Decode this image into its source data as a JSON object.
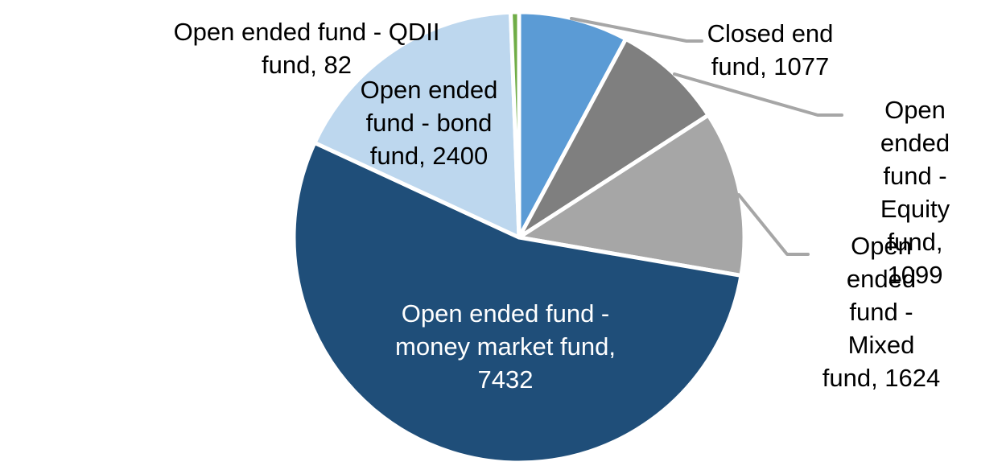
{
  "chart_data": {
    "type": "pie",
    "categories": [
      "Closed end fund",
      "Open ended fund - Equity fund",
      "Open ended fund - Mixed fund",
      "Open ended fund - money market fund",
      "Open ended fund - bond fund",
      "Open ended fund - QDII fund"
    ],
    "values": [
      1077,
      1099,
      1624,
      7432,
      2400,
      82
    ],
    "colors": [
      "#5b9bd5",
      "#7f7f7f",
      "#a6a6a6",
      "#1f4e79",
      "#bdd7ee",
      "#70ad47"
    ],
    "start_angle_deg": 0,
    "direction": "clockwise",
    "legend": "none",
    "background_color": "#ffffff",
    "slice_border_color": "#ffffff",
    "leader_line_color": "#a6a6a6",
    "data_labels": [
      {
        "category": "Closed end fund",
        "value": 1077,
        "text": "Closed end\nfund, 1077",
        "placement": "outside",
        "leader_line": true,
        "color": "#000000"
      },
      {
        "category": "Open ended fund - Equity fund",
        "value": 1099,
        "text": "Open ended\nfund - Equity\nfund, 1099",
        "placement": "outside",
        "leader_line": true,
        "color": "#000000"
      },
      {
        "category": "Open ended fund - Mixed fund",
        "value": 1624,
        "text": "Open ended\nfund - Mixed\nfund, 1624",
        "placement": "outside",
        "leader_line": true,
        "color": "#000000"
      },
      {
        "category": "Open ended fund - money market fund",
        "value": 7432,
        "text": "Open ended fund -\nmoney market fund,\n7432",
        "placement": "inside",
        "leader_line": false,
        "color": "#ffffff"
      },
      {
        "category": "Open ended fund - bond fund",
        "value": 2400,
        "text": "Open ended\nfund - bond\nfund, 2400",
        "placement": "inside",
        "leader_line": false,
        "color": "#000000"
      },
      {
        "category": "Open ended fund - QDII fund",
        "value": 82,
        "text": "Open ended fund - QDII\nfund, 82",
        "placement": "outside",
        "leader_line": false,
        "color": "#000000"
      }
    ]
  }
}
